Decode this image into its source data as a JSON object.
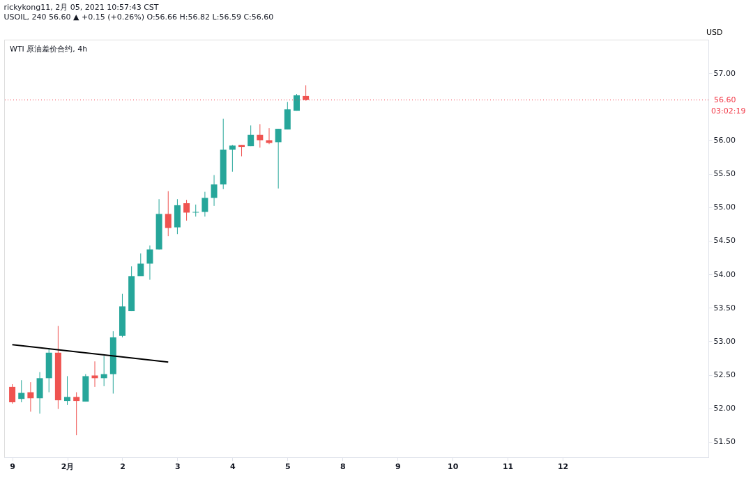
{
  "chart_data": {
    "type": "candlestick",
    "title": "rickykong11, 2月 05, 2021 10:57:43 CST",
    "subtitle": "USOIL, 240 56.60 ▲ +0.15 (+0.26%) O:56.66 H:56.82 L:56.59 C:56.60",
    "ylabel": "USD",
    "annotations": [
      "WTI 原油差价合约, 4h",
      "03:02:19"
    ],
    "categories": [
      "9",
      null,
      null,
      null,
      null,
      null,
      "2月",
      null,
      null,
      null,
      null,
      null,
      "2",
      null,
      null,
      null,
      null,
      null,
      "3",
      null,
      null,
      null,
      null,
      null,
      "4",
      null,
      null,
      null,
      null,
      null,
      "5",
      null,
      null,
      null,
      null,
      null,
      "8",
      null,
      null,
      null,
      null,
      null,
      "9",
      null,
      null,
      null,
      null,
      null,
      "10",
      null,
      null,
      null,
      null,
      null,
      "11",
      null,
      null,
      null,
      null,
      null,
      "12",
      null,
      null,
      null,
      null,
      null,
      null,
      null,
      null,
      null,
      null,
      null,
      null,
      null,
      null,
      null
    ],
    "ohlc": [
      [
        52.32,
        52.36,
        52.07,
        52.09
      ],
      [
        52.14,
        52.42,
        52.09,
        52.23
      ],
      [
        52.24,
        52.39,
        51.95,
        52.15
      ],
      [
        52.15,
        52.54,
        51.92,
        52.45
      ],
      [
        52.45,
        52.9,
        52.24,
        52.83
      ],
      [
        52.83,
        53.23,
        51.99,
        52.12
      ],
      [
        52.11,
        52.48,
        52.05,
        52.17
      ],
      [
        52.17,
        52.24,
        51.6,
        52.11
      ],
      [
        52.1,
        52.51,
        52.1,
        52.48
      ],
      [
        52.49,
        52.7,
        52.32,
        52.45
      ],
      [
        52.45,
        52.78,
        52.33,
        52.51
      ],
      [
        52.51,
        53.15,
        52.22,
        53.06
      ],
      [
        53.08,
        53.71,
        53.06,
        53.52
      ],
      [
        53.45,
        54.12,
        53.45,
        53.97
      ],
      [
        53.97,
        54.31,
        53.97,
        54.16
      ],
      [
        54.16,
        54.43,
        53.92,
        54.37
      ],
      [
        54.37,
        55.12,
        54.37,
        54.9
      ],
      [
        54.9,
        55.24,
        54.57,
        54.69
      ],
      [
        54.7,
        55.12,
        54.6,
        55.03
      ],
      [
        55.06,
        55.11,
        54.8,
        54.92
      ],
      [
        54.92,
        55.04,
        54.86,
        54.93
      ],
      [
        54.93,
        55.23,
        54.86,
        55.14
      ],
      [
        55.14,
        55.48,
        55.02,
        55.34
      ],
      [
        55.34,
        56.32,
        55.27,
        55.86
      ],
      [
        55.86,
        55.93,
        55.53,
        55.92
      ],
      [
        55.93,
        55.93,
        55.76,
        55.9
      ],
      [
        55.91,
        56.22,
        55.91,
        56.08
      ],
      [
        56.08,
        56.24,
        55.89,
        56.0
      ],
      [
        56.0,
        56.18,
        55.94,
        55.96
      ],
      [
        55.97,
        56.17,
        55.28,
        56.17
      ],
      [
        56.16,
        56.57,
        56.16,
        56.46
      ],
      [
        56.44,
        56.69,
        56.44,
        56.67
      ],
      [
        56.66,
        56.82,
        56.59,
        56.6
      ],
      null,
      null,
      null,
      null,
      null,
      null,
      null,
      null,
      null,
      null,
      null,
      null,
      null,
      null,
      null,
      null,
      null,
      null,
      null,
      null,
      null,
      null,
      null,
      null,
      null,
      null,
      null,
      null,
      null,
      null,
      null,
      null,
      null,
      null,
      null,
      null,
      null,
      null,
      null,
      null,
      null,
      null,
      null
    ],
    "series": [
      {
        "type": "line",
        "color": "#000000",
        "values": [
          52.95,
          null,
          null,
          null,
          null,
          null,
          null,
          null,
          null,
          null,
          null,
          null,
          null,
          null,
          null,
          null,
          null,
          52.69,
          null,
          null,
          null,
          null,
          null,
          null,
          null,
          null,
          null,
          null,
          null,
          null,
          null,
          null,
          null,
          null,
          null,
          null,
          null,
          null,
          null,
          null,
          null,
          null,
          null,
          null,
          null,
          null,
          null,
          null,
          null,
          null,
          null,
          null,
          null,
          null,
          null,
          null,
          null,
          null,
          null,
          null,
          null,
          null,
          null,
          null,
          null,
          null,
          null,
          null,
          null,
          null,
          null,
          null,
          null,
          null,
          null,
          null
        ]
      }
    ],
    "ylim": [
      51.27,
      57.5
    ],
    "yticks": [
      {
        "value": 51.5,
        "label": "51.50"
      },
      {
        "value": 52,
        "label": "52.00"
      },
      {
        "value": 52.5,
        "label": "52.50"
      },
      {
        "value": 53,
        "label": "53.00"
      },
      {
        "value": 53.5,
        "label": "53.50"
      },
      {
        "value": 54,
        "label": "54.00"
      },
      {
        "value": 54.5,
        "label": "54.50"
      },
      {
        "value": 55,
        "label": "55.00"
      },
      {
        "value": 55.5,
        "label": "55.50"
      },
      {
        "value": 56,
        "label": "56.00"
      },
      {
        "value": 57,
        "label": "57.00"
      }
    ],
    "ref_lines": [
      {
        "axis": "y",
        "value": 56.6,
        "label": "56.60",
        "color": "#f23645",
        "line_style": "dotted"
      }
    ],
    "grid": false
  }
}
